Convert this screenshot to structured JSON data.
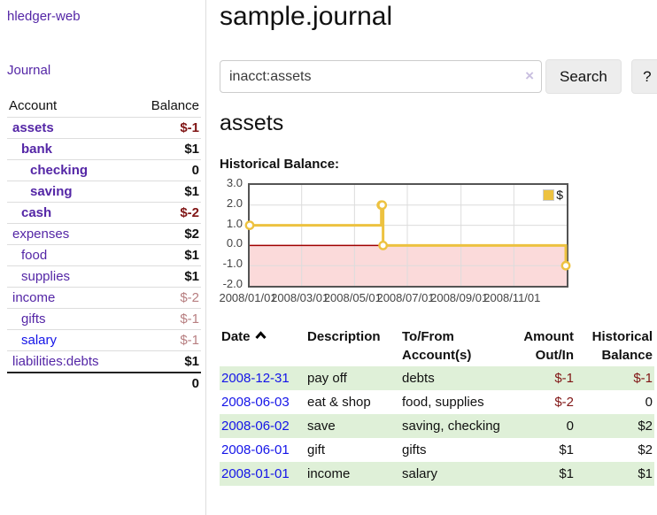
{
  "app": {
    "brand": "hledger-web"
  },
  "nav": {
    "journal": "Journal"
  },
  "sidebar": {
    "headers": {
      "account": "Account",
      "balance": "Balance"
    },
    "rows": [
      {
        "name": "assets",
        "balance": "$-1"
      },
      {
        "name": "bank",
        "balance": "$1"
      },
      {
        "name": "checking",
        "balance": "0"
      },
      {
        "name": "saving",
        "balance": "$1"
      },
      {
        "name": "cash",
        "balance": "$-2"
      },
      {
        "name": "expenses",
        "balance": "$2"
      },
      {
        "name": "food",
        "balance": "$1"
      },
      {
        "name": "supplies",
        "balance": "$1"
      },
      {
        "name": "income",
        "balance": "$-2"
      },
      {
        "name": "gifts",
        "balance": "$-1"
      },
      {
        "name": "salary",
        "balance": "$-1"
      },
      {
        "name": "liabilities:debts",
        "balance": "$1"
      }
    ],
    "total": "0"
  },
  "header": {
    "title": "sample.journal"
  },
  "search": {
    "value": "inacct:assets",
    "clear_icon": "×",
    "search_button": "Search",
    "help_button": "?"
  },
  "account": {
    "title": "assets",
    "section_label": "Historical Balance:"
  },
  "chart_data": {
    "type": "line",
    "step": true,
    "title": "Historical Balance:",
    "series": [
      {
        "name": "$",
        "color": "#edc240",
        "points": [
          [
            "2008-01-01",
            1
          ],
          [
            "2008-06-01",
            2
          ],
          [
            "2008-06-02",
            2
          ],
          [
            "2008-06-03",
            0
          ],
          [
            "2008-12-31",
            -1
          ]
        ]
      }
    ],
    "xlim": [
      "2008-01-01",
      "2009-01-01"
    ],
    "ylim": [
      -2,
      3
    ],
    "yticks": [
      3,
      2,
      1,
      0,
      -1,
      -2
    ],
    "ytick_labels": [
      "3.0",
      "2.0",
      "1.0",
      "0.0",
      "-1.0",
      "-2.0"
    ],
    "xtick_dates": [
      "2008-01-01",
      "2008-03-01",
      "2008-05-01",
      "2008-07-01",
      "2008-09-01",
      "2008-11-01"
    ],
    "xtick_labels": [
      "2008/01/01",
      "2008/03/01",
      "2008/05/01",
      "2008/07/01",
      "2008/09/01",
      "2008/11/01"
    ],
    "legend_position": "top-right",
    "grid": true,
    "grid_color": "#dcdcdc",
    "zero_line_color": "#a00000",
    "negative_region_color": "#fbdada"
  },
  "register": {
    "headers": {
      "date": "Date",
      "description": "Description",
      "accounts": "To/From Account(s)",
      "amount": "Amount Out/In",
      "balance": "Historical Balance"
    },
    "rows": [
      {
        "date": "2008-12-31",
        "description": "pay off",
        "accounts": "debts",
        "amount": "$-1",
        "balance": "$-1"
      },
      {
        "date": "2008-06-03",
        "description": "eat & shop",
        "accounts": "food, supplies",
        "amount": "$-2",
        "balance": "0"
      },
      {
        "date": "2008-06-02",
        "description": "save",
        "accounts": "saving, checking",
        "amount": "0",
        "balance": "$2"
      },
      {
        "date": "2008-06-01",
        "description": "gift",
        "accounts": "gifts",
        "amount": "$1",
        "balance": "$2"
      },
      {
        "date": "2008-01-01",
        "description": "income",
        "accounts": "salary",
        "amount": "$1",
        "balance": "$1"
      }
    ]
  },
  "colors": {
    "link_visited": "#5426a6",
    "link_unvisited": "#1414e8",
    "negative": "#801515",
    "negative_muted": "#b77e80",
    "row_green": "#dff0d8",
    "accent_gold": "#edc240"
  }
}
